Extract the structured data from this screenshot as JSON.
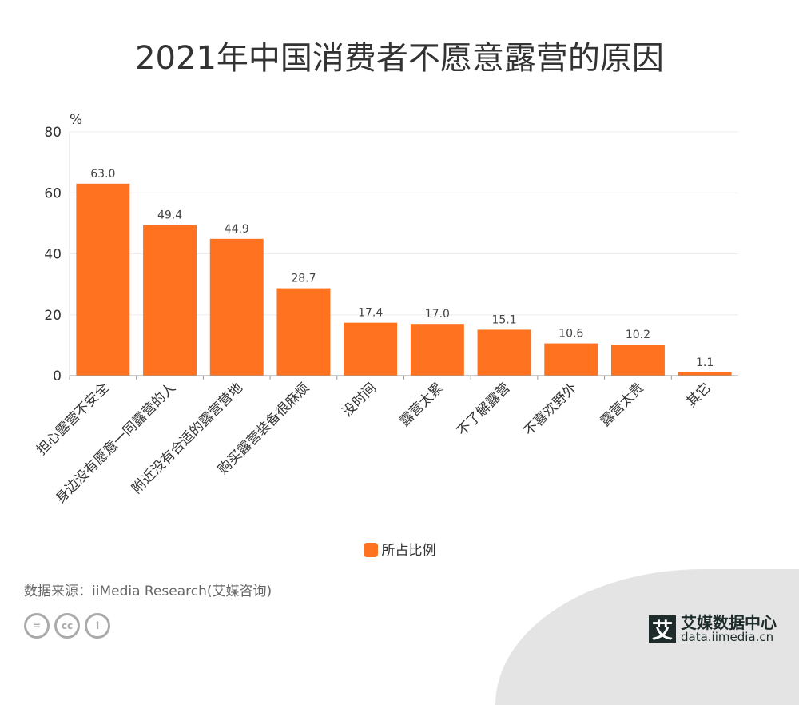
{
  "title": "2021年中国消费者不愿意露营的原因",
  "chart_data": {
    "type": "bar",
    "title": "2021年中国消费者不愿意露营的原因",
    "ylabel": "%",
    "ylim": [
      0,
      80
    ],
    "yticks": [
      0,
      20,
      40,
      60,
      80
    ],
    "grid": true,
    "categories": [
      "担心露营不安全",
      "身边没有愿意一同露营的人",
      "附近没有合适的露营营地",
      "购买露营装备很麻烦",
      "没时间",
      "露营太累",
      "不了解露营",
      "不喜欢野外",
      "露营太贵",
      "其它"
    ],
    "series": [
      {
        "name": "所占比例",
        "values": [
          63.0,
          49.4,
          44.9,
          28.7,
          17.4,
          17.0,
          15.1,
          10.6,
          10.2,
          1.1
        ],
        "color": "#ff7320"
      }
    ],
    "legend_position": "bottom"
  },
  "source": "数据来源：iiMedia Research(艾媒咨询)",
  "brand": {
    "logo": "艾",
    "name": "艾媒数据中心",
    "url": "data.iimedia.cn"
  },
  "cc_icons": [
    "=",
    "cc",
    "i"
  ]
}
